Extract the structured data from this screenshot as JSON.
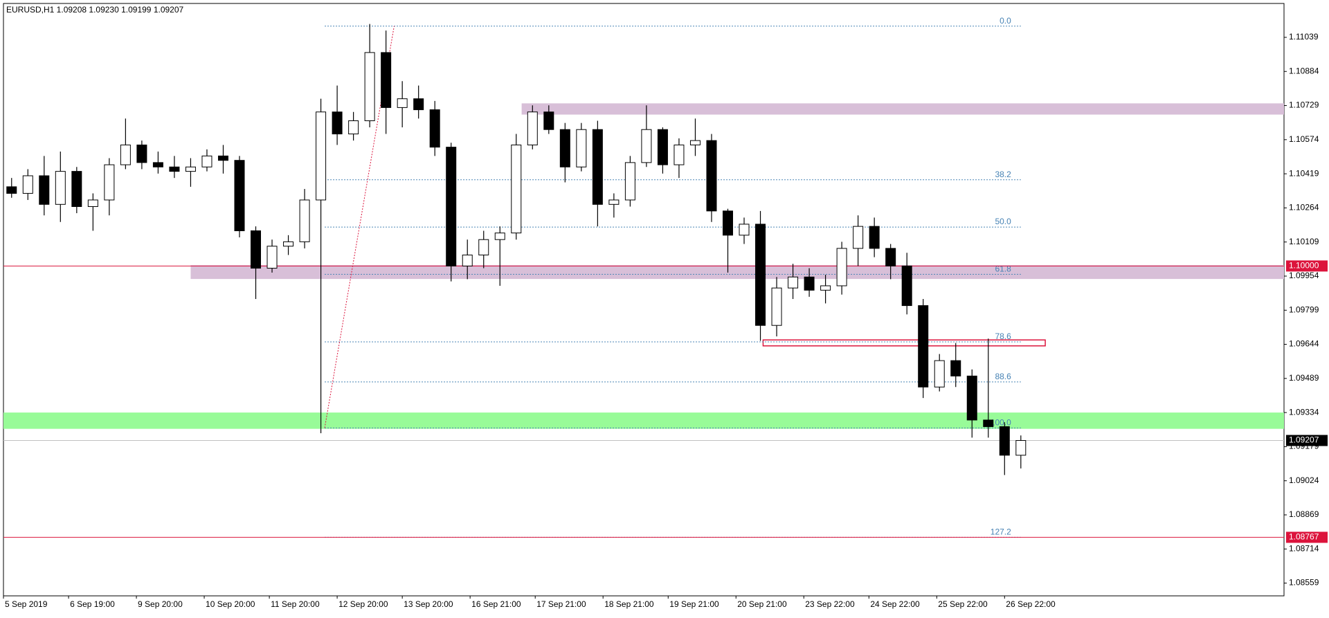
{
  "chart_data": {
    "type": "candlestick",
    "title": "EURUSD,H1  1.09208 1.09230 1.09199 1.09207",
    "x": [
      3,
      9,
      15,
      21,
      27,
      33,
      39,
      45,
      51,
      57,
      63,
      69,
      75,
      81,
      87,
      93,
      99,
      105,
      111,
      117,
      123,
      129,
      135,
      141,
      147,
      153,
      159,
      165,
      171,
      177,
      183,
      189,
      195,
      201,
      207,
      213,
      219,
      225,
      231,
      237,
      243,
      249,
      255,
      261,
      267,
      273,
      279,
      285,
      291,
      297,
      303,
      309,
      315,
      321,
      327,
      333,
      339,
      345,
      351,
      357,
      363,
      369,
      375
    ],
    "open": [
      1.1036,
      1.1033,
      1.1041,
      1.1028,
      1.1043,
      1.1027,
      1.103,
      1.1046,
      1.1055,
      1.1047,
      1.1045,
      1.1043,
      1.1045,
      1.105,
      1.1048,
      1.1016,
      1.0999,
      1.1009,
      1.1011,
      1.103,
      1.107,
      1.106,
      1.1066,
      1.1097,
      1.1072,
      1.1076,
      1.1071,
      1.1054,
      1.1,
      1.1005,
      1.1012,
      1.1015,
      1.1055,
      1.107,
      1.1062,
      1.1045,
      1.1062,
      1.1028,
      1.103,
      1.1047,
      1.1062,
      1.1046,
      1.1055,
      1.1057,
      1.1025,
      1.1014,
      1.1019,
      1.0973,
      1.099,
      1.0995,
      1.0989,
      1.0991,
      1.1008,
      1.1018,
      1.1008,
      1.1,
      1.0982,
      1.0945,
      1.0957,
      1.095,
      1.093,
      1.0927,
      1.0914
    ],
    "high": [
      1.104,
      1.1044,
      1.105,
      1.1052,
      1.1045,
      1.1033,
      1.1049,
      1.1067,
      1.1057,
      1.1052,
      1.105,
      1.1049,
      1.1053,
      1.1055,
      1.105,
      1.1018,
      1.1012,
      1.1014,
      1.1035,
      1.1076,
      1.1082,
      1.107,
      1.111,
      1.1107,
      1.1084,
      1.1082,
      1.1075,
      1.1056,
      1.1012,
      1.1016,
      1.1018,
      1.106,
      1.1073,
      1.1073,
      1.1065,
      1.1065,
      1.1066,
      1.1033,
      1.105,
      1.1073,
      1.1063,
      1.1058,
      1.1067,
      1.106,
      1.1026,
      1.1022,
      1.1025,
      1.0995,
      1.1001,
      1.0999,
      1.0996,
      1.1011,
      1.1023,
      1.1022,
      1.101,
      1.1006,
      1.0985,
      1.096,
      1.0965,
      1.0953,
      1.0967,
      1.0929,
      1.0923
    ],
    "low": [
      1.1031,
      1.103,
      1.1023,
      1.102,
      1.1024,
      1.1016,
      1.1023,
      1.1044,
      1.1044,
      1.1042,
      1.104,
      1.1036,
      1.1043,
      1.1042,
      1.1013,
      1.0985,
      1.0997,
      1.1005,
      1.1008,
      1.0924,
      1.1055,
      1.1057,
      1.1063,
      1.106,
      1.1063,
      1.1067,
      1.105,
      1.0993,
      1.0994,
      1.0999,
      1.0991,
      1.1012,
      1.1053,
      1.106,
      1.1038,
      1.1043,
      1.1018,
      1.1022,
      1.1027,
      1.1045,
      1.1042,
      1.104,
      1.105,
      1.102,
      1.0997,
      1.101,
      1.0966,
      1.0968,
      1.0985,
      1.0986,
      1.0983,
      1.0987,
      1.1,
      1.1004,
      1.0994,
      1.0978,
      1.094,
      1.0943,
      1.0945,
      1.0922,
      1.0922,
      1.0905,
      1.0908
    ],
    "close": [
      1.1033,
      1.1041,
      1.1028,
      1.1043,
      1.1027,
      1.103,
      1.1046,
      1.1055,
      1.1047,
      1.1045,
      1.1043,
      1.1045,
      1.105,
      1.1048,
      1.1016,
      1.0999,
      1.1009,
      1.1011,
      1.103,
      1.107,
      1.106,
      1.1066,
      1.1097,
      1.1072,
      1.1076,
      1.1071,
      1.1054,
      1.1,
      1.1005,
      1.1012,
      1.1015,
      1.1055,
      1.107,
      1.1062,
      1.1045,
      1.1062,
      1.1028,
      1.103,
      1.1047,
      1.1062,
      1.1046,
      1.1055,
      1.1057,
      1.1025,
      1.1014,
      1.1019,
      1.0973,
      1.099,
      1.0995,
      1.0989,
      1.0991,
      1.1008,
      1.1018,
      1.1008,
      1.1,
      1.0982,
      1.0945,
      1.0957,
      1.095,
      1.093,
      1.0927,
      1.0914,
      1.09207
    ],
    "color": "#000000",
    "xlim": [
      0,
      472
    ],
    "ylim": [
      1.08501,
      1.11193
    ],
    "xticks": [
      {
        "value": 0,
        "label": "5 Sep 2019"
      },
      {
        "value": 24,
        "label": "6 Sep 19:00"
      },
      {
        "value": 49,
        "label": "9 Sep 20:00"
      },
      {
        "value": 74,
        "label": "10 Sep 20:00"
      },
      {
        "value": 98,
        "label": "11 Sep 20:00"
      },
      {
        "value": 123,
        "label": "12 Sep 20:00"
      },
      {
        "value": 147,
        "label": "13 Sep 20:00"
      },
      {
        "value": 172,
        "label": "16 Sep 21:00"
      },
      {
        "value": 196,
        "label": "17 Sep 21:00"
      },
      {
        "value": 221,
        "label": "18 Sep 21:00"
      },
      {
        "value": 245,
        "label": "19 Sep 21:00"
      },
      {
        "value": 270,
        "label": "20 Sep 21:00"
      },
      {
        "value": 295,
        "label": "23 Sep 22:00"
      },
      {
        "value": 319,
        "label": "24 Sep 22:00"
      },
      {
        "value": 344,
        "label": "25 Sep 22:00"
      },
      {
        "value": 369,
        "label": "26 Sep 22:00"
      }
    ],
    "yticks": [
      1.11039,
      1.10884,
      1.10729,
      1.10574,
      1.10419,
      1.10264,
      1.10109,
      1.09954,
      1.09799,
      1.09644,
      1.09489,
      1.09334,
      1.09179,
      1.09024,
      1.08869,
      1.08714,
      1.08559
    ],
    "grid": false,
    "zones": [
      {
        "x": [
          191,
          472
        ],
        "y": [
          1.10739,
          1.10688
        ],
        "fill": "#d8bfd8"
      },
      {
        "x": [
          69,
          472
        ],
        "y": [
          1.10004,
          1.09941
        ],
        "fill": "#d8bfd8"
      },
      {
        "x": [
          0,
          472
        ],
        "y": [
          1.09334,
          1.0926
        ],
        "fill": "#98fb98"
      },
      {
        "x": [
          280,
          384
        ],
        "y": [
          1.09664,
          1.09637
        ],
        "stroke": "#dc143c"
      }
    ],
    "hlines": [
      {
        "value": 1.1,
        "label": "1.10000",
        "color": "#dc143c",
        "label_bg": "#dc143c"
      },
      {
        "value": 1.08767,
        "color": "#dc143c",
        "label_bg": "#dc143c"
      },
      {
        "value": 1.09207,
        "color": "#c0c0c0",
        "label_bg": "#000000"
      }
    ],
    "fib": {
      "x": [
        118.4,
        144
      ],
      "y": [
        1.09264,
        1.1109
      ],
      "color": "#dc143c",
      "level_color": "#4682b4",
      "levels": [
        {
          "value": 1.1109,
          "label": "0.0"
        },
        {
          "value": 1.10392,
          "label": "38.2"
        },
        {
          "value": 1.10177,
          "label": "50.0"
        },
        {
          "value": 1.09962,
          "label": "61.8"
        },
        {
          "value": 1.09655,
          "label": "78.6"
        },
        {
          "value": 1.09473,
          "label": "88.6"
        },
        {
          "value": 1.09264,
          "label": "100.0"
        },
        {
          "value": 1.08767,
          "label": "127.2"
        }
      ]
    }
  }
}
